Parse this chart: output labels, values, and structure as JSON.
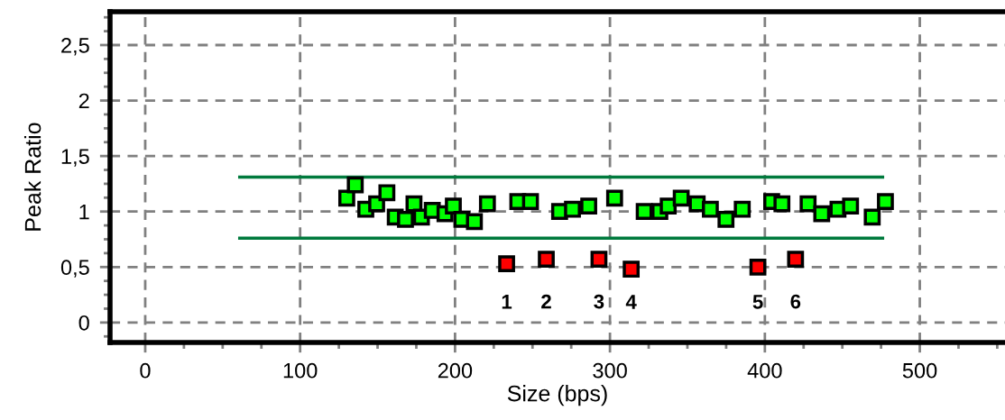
{
  "chart_data": {
    "type": "scatter",
    "xlabel": "Size (bps)",
    "ylabel": "Peak Ratio",
    "xlim": [
      -22.7,
      555
    ],
    "ylim": [
      -0.18,
      2.8
    ],
    "xticks": [
      0,
      100,
      200,
      300,
      400,
      500
    ],
    "yticks": [
      0,
      {
        "value": 0.5,
        "label": "0,5"
      },
      1,
      {
        "value": 1.5,
        "label": "1,5"
      },
      2,
      {
        "value": 2.5,
        "label": "2,5"
      }
    ],
    "grid": true,
    "legend": false,
    "series": [
      {
        "type": "line",
        "marker": "none",
        "color": "#007a3d",
        "x": [
          61,
          476
        ],
        "values": [
          1.31,
          1.31
        ]
      },
      {
        "type": "line",
        "marker": "none",
        "color": "#007a3d",
        "x": [
          61,
          476
        ],
        "values": [
          0.76,
          0.76
        ]
      },
      {
        "marker": "square",
        "color": "#00ff00",
        "x": [
          130.1,
          135.6,
          142.4,
          149.4,
          156.0,
          161.4,
          168.0,
          173.5,
          178.3,
          185.3,
          193.5,
          198.9,
          204.4,
          212.5,
          220.9,
          240.5,
          248.7,
          267.5,
          275.8,
          286.3,
          303.0,
          322.1,
          332.2,
          337.6,
          346.0,
          356.3,
          364.8,
          374.9,
          385.4,
          404.4,
          411.0,
          427.9,
          436.7,
          447.2,
          455.3,
          469.3,
          477.8
        ],
        "values": [
          1.12,
          1.24,
          1.02,
          1.07,
          1.17,
          0.95,
          0.93,
          1.07,
          0.95,
          1.01,
          0.98,
          1.05,
          0.93,
          0.91,
          1.07,
          1.09,
          1.09,
          1.0,
          1.02,
          1.05,
          1.12,
          1.0,
          1.0,
          1.05,
          1.12,
          1.07,
          1.02,
          0.93,
          1.02,
          1.09,
          1.07,
          1.07,
          0.98,
          1.02,
          1.05,
          0.95,
          1.09
        ]
      },
      {
        "marker": "square",
        "color": "#ff0000",
        "x": [
          233.3,
          258.9,
          292.9,
          313.7,
          395.5,
          419.8
        ],
        "values": [
          0.53,
          0.57,
          0.57,
          0.48,
          0.5,
          0.57
        ]
      }
    ],
    "annotations": [
      {
        "text": "1",
        "x": 233.3,
        "y": 0.53
      },
      {
        "text": "2",
        "x": 258.9,
        "y": 0.57
      },
      {
        "text": "3",
        "x": 292.9,
        "y": 0.57
      },
      {
        "text": "4",
        "x": 313.7,
        "y": 0.48
      },
      {
        "text": "5",
        "x": 395.5,
        "y": 0.5
      },
      {
        "text": "6",
        "x": 419.8,
        "y": 0.57
      }
    ]
  }
}
